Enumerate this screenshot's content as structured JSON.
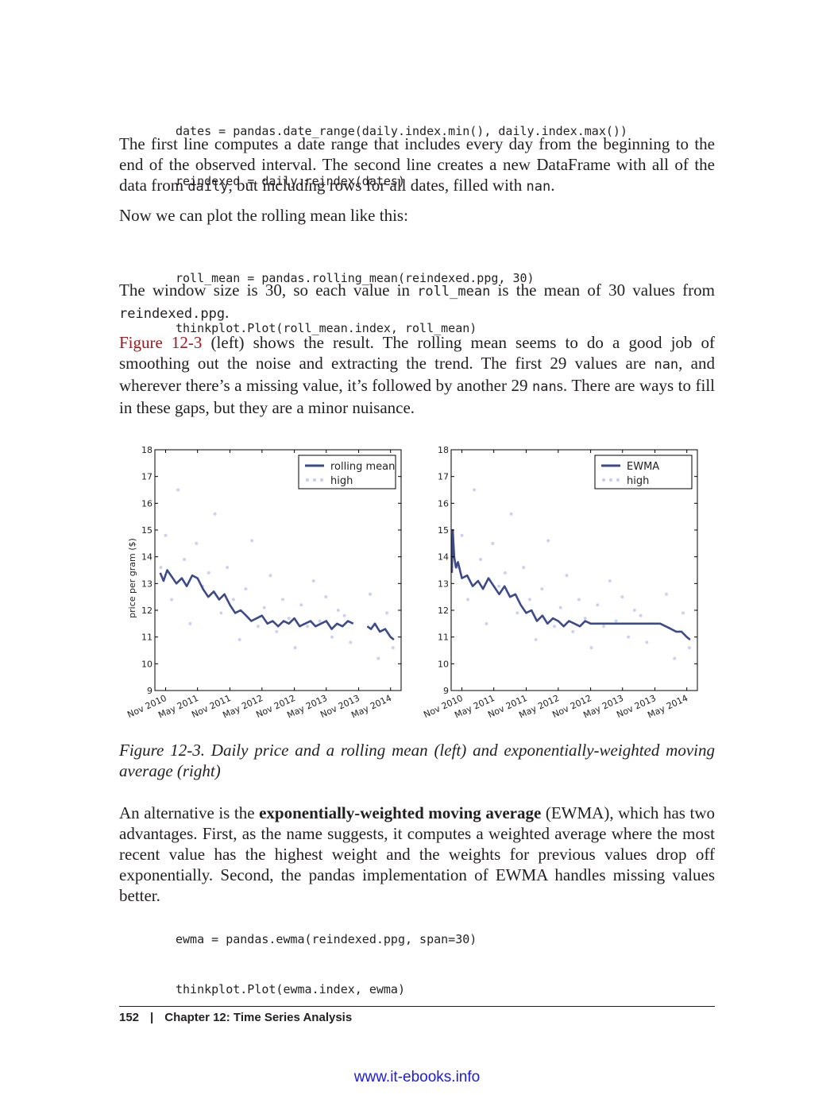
{
  "code_blocks": {
    "top": [
      "dates = pandas.date_range(daily.index.min(), daily.index.max())",
      "reindexed = daily.reindex(dates)"
    ],
    "middle": [
      "roll_mean = pandas.rolling_mean(reindexed.ppg, 30)",
      "thinkplot.Plot(roll_mean.index, roll_mean)"
    ],
    "bottom": [
      "ewma = pandas.ewma(reindexed.ppg, span=30)",
      "thinkplot.Plot(ewma.index, ewma)"
    ]
  },
  "paragraphs": {
    "p1": {
      "text_a": "The first line computes a date range that includes every day from the beginning to the end of the observed interval. The second line creates a new DataFrame with all of the data from ",
      "code_a": "daily",
      "text_b": ", but including rows for all dates, filled with ",
      "code_b": "nan",
      "text_c": "."
    },
    "p2": {
      "text": "Now we can plot the rolling mean like this:"
    },
    "p3": {
      "text_a": "The window size is 30, so each value in ",
      "code_a": "roll_mean",
      "text_b": " is the mean of 30 values from ",
      "code_b": "reindexed.ppg",
      "text_c": "."
    },
    "p4": {
      "link": "Figure 12-3",
      "text_a": " (left) shows the result. The rolling mean seems to do a good job of smoothing out the noise and extracting the trend. The first 29 values are ",
      "code_a": "nan",
      "text_b": ", and wherever there’s a missing value, it’s followed by another 29 ",
      "code_b": "nan",
      "text_c": "s. There are ways to fill in these gaps, but they are a minor nuisance."
    },
    "p5": {
      "text_a": "An alternative is the ",
      "bold": "exponentially-weighted moving average",
      "text_b": " (EWMA), which has two advantages. First, as the name suggests, it computes a weighted average where the most recent value has the highest weight and the weights for previous values drop off exponentially. Second, the pandas implementation of EWMA handles missing values better."
    }
  },
  "caption": "Figure 12-3. Daily price and a rolling mean (left) and exponentially-weighted moving average (right)",
  "footer": {
    "page_number": "152",
    "separator": "|",
    "chapter": "Chapter 12: Time Series Analysis"
  },
  "site": "www.it-ebooks.info",
  "colors": {
    "line": "#3c4a8c",
    "scatter": "#a9b3ee",
    "link": "#a0161c"
  },
  "chart_data": [
    {
      "type": "line",
      "title": "",
      "xlabel": "",
      "ylabel": "price per gram ($)",
      "ylim": [
        9,
        18
      ],
      "yticks": [
        "9",
        "10",
        "11",
        "12",
        "13",
        "14",
        "15",
        "16",
        "17",
        "18"
      ],
      "xticks": [
        "Nov 2010",
        "May 2011",
        "Nov 2011",
        "May 2012",
        "Nov 2012",
        "May 2013",
        "Nov 2013",
        "May 2014"
      ],
      "xlim": [
        "2010-09-01",
        "2014-06-30"
      ],
      "legend_position": "top-right",
      "grid": false,
      "series": [
        {
          "name": "rolling mean",
          "style": "line",
          "x": [
            "2010-10-01",
            "2010-10-20",
            "2010-11-10",
            "2010-12-01",
            "2011-01-01",
            "2011-02-01",
            "2011-03-01",
            "2011-04-01",
            "2011-05-01",
            "2011-06-01",
            "2011-07-01",
            "2011-08-01",
            "2011-09-01",
            "2011-10-01",
            "2011-11-01",
            "2011-12-01",
            "2012-01-01",
            "2012-02-01",
            "2012-03-01",
            "2012-04-01",
            "2012-05-01",
            "2012-06-01",
            "2012-07-01",
            "2012-08-01",
            "2012-09-01",
            "2012-10-01",
            "2012-11-01",
            "2012-12-01",
            "2013-01-01",
            "2013-02-01",
            "2013-03-01",
            "2013-04-01",
            "2013-05-01",
            "2013-06-01",
            "2013-07-01",
            "2013-08-01",
            "2013-09-01",
            "2013-10-01"
          ],
          "values": [
            13.4,
            13.1,
            13.5,
            13.3,
            13.0,
            13.2,
            12.9,
            13.3,
            13.2,
            12.8,
            12.5,
            12.7,
            12.4,
            12.6,
            12.2,
            11.9,
            12.0,
            11.8,
            11.6,
            11.7,
            11.8,
            11.5,
            11.6,
            11.4,
            11.6,
            11.5,
            11.7,
            11.4,
            11.5,
            11.6,
            11.4,
            11.5,
            11.6,
            11.3,
            11.5,
            11.4,
            11.6,
            11.5
          ]
        },
        {
          "name": "rolling mean",
          "style": "line",
          "x": [
            "2013-12-20",
            "2014-01-10",
            "2014-02-01",
            "2014-03-01",
            "2014-04-01",
            "2014-05-01",
            "2014-05-20"
          ],
          "values": [
            11.4,
            11.3,
            11.5,
            11.2,
            11.3,
            11.0,
            10.9
          ]
        },
        {
          "name": "high",
          "style": "scatter",
          "x": [
            "2010-10-05",
            "2010-11-01",
            "2010-12-05",
            "2011-01-10",
            "2011-02-15",
            "2011-03-20",
            "2011-04-25",
            "2011-05-30",
            "2011-07-04",
            "2011-08-08",
            "2011-09-12",
            "2011-10-17",
            "2011-11-21",
            "2011-12-26",
            "2012-01-30",
            "2012-03-05",
            "2012-04-09",
            "2012-05-14",
            "2012-06-18",
            "2012-07-23",
            "2012-08-27",
            "2012-10-01",
            "2012-11-05",
            "2012-12-10",
            "2013-01-14",
            "2013-02-18",
            "2013-03-25",
            "2013-04-29",
            "2013-06-03",
            "2013-07-08",
            "2013-08-12",
            "2013-09-16",
            "2014-01-05",
            "2014-02-20",
            "2014-04-10",
            "2014-05-15"
          ],
          "values": [
            13.6,
            14.8,
            12.4,
            16.5,
            13.9,
            11.5,
            14.5,
            12.9,
            13.4,
            15.6,
            11.9,
            13.6,
            12.4,
            10.9,
            12.8,
            14.6,
            11.4,
            12.1,
            13.3,
            11.2,
            12.4,
            11.7,
            10.6,
            12.2,
            11.4,
            13.1,
            11.6,
            12.5,
            11.0,
            12.0,
            11.8,
            10.8,
            12.6,
            10.2,
            11.9,
            10.6
          ]
        }
      ]
    },
    {
      "type": "line",
      "title": "",
      "xlabel": "",
      "ylabel": "",
      "ylim": [
        9,
        18
      ],
      "yticks": [
        "9",
        "10",
        "11",
        "12",
        "13",
        "14",
        "15",
        "16",
        "17",
        "18"
      ],
      "xticks": [
        "Nov 2010",
        "May 2011",
        "Nov 2011",
        "May 2012",
        "Nov 2012",
        "May 2013",
        "Nov 2013",
        "May 2014"
      ],
      "xlim": [
        "2010-09-01",
        "2014-06-30"
      ],
      "legend_position": "top-right",
      "grid": false,
      "series": [
        {
          "name": "EWMA",
          "style": "line",
          "x": [
            "2010-09-05",
            "2010-09-10",
            "2010-09-18",
            "2010-09-28",
            "2010-10-10",
            "2010-11-01",
            "2010-12-01",
            "2011-01-01",
            "2011-02-01",
            "2011-03-01",
            "2011-04-01",
            "2011-05-01",
            "2011-06-01",
            "2011-07-01",
            "2011-08-01",
            "2011-09-01",
            "2011-10-01",
            "2011-11-01",
            "2011-12-01",
            "2012-01-01",
            "2012-02-01",
            "2012-03-01",
            "2012-04-01",
            "2012-05-01",
            "2012-06-01",
            "2012-07-01",
            "2012-08-01",
            "2012-09-01",
            "2012-10-01",
            "2012-11-01",
            "2012-12-01",
            "2013-01-01",
            "2013-02-01",
            "2013-03-01",
            "2013-04-01",
            "2013-05-01",
            "2013-06-01",
            "2013-07-01",
            "2013-08-01",
            "2013-09-01",
            "2013-10-01",
            "2013-11-01",
            "2013-12-01",
            "2014-01-01",
            "2014-02-01",
            "2014-03-01",
            "2014-04-01",
            "2014-05-01",
            "2014-05-20"
          ],
          "values": [
            13.4,
            15.0,
            14.0,
            13.6,
            13.8,
            13.2,
            13.3,
            12.9,
            13.1,
            12.8,
            13.2,
            12.9,
            12.6,
            12.9,
            12.5,
            12.6,
            12.2,
            11.9,
            12.0,
            11.6,
            11.8,
            11.5,
            11.7,
            11.6,
            11.4,
            11.6,
            11.5,
            11.4,
            11.6,
            11.5,
            11.5,
            11.5,
            11.5,
            11.5,
            11.5,
            11.5,
            11.5,
            11.5,
            11.5,
            11.5,
            11.5,
            11.5,
            11.5,
            11.4,
            11.3,
            11.2,
            11.2,
            11.0,
            10.9
          ]
        },
        {
          "name": "high",
          "style": "scatter",
          "x": [
            "2010-10-05",
            "2010-11-01",
            "2010-12-05",
            "2011-01-10",
            "2011-02-15",
            "2011-03-20",
            "2011-04-25",
            "2011-05-30",
            "2011-07-04",
            "2011-08-08",
            "2011-09-12",
            "2011-10-17",
            "2011-11-21",
            "2011-12-26",
            "2012-01-30",
            "2012-03-05",
            "2012-04-09",
            "2012-05-14",
            "2012-06-18",
            "2012-07-23",
            "2012-08-27",
            "2012-10-01",
            "2012-11-05",
            "2012-12-10",
            "2013-01-14",
            "2013-02-18",
            "2013-03-25",
            "2013-04-29",
            "2013-06-03",
            "2013-07-08",
            "2013-08-12",
            "2013-09-16",
            "2014-01-05",
            "2014-02-20",
            "2014-04-10",
            "2014-05-15"
          ],
          "values": [
            13.6,
            14.8,
            12.4,
            16.5,
            13.9,
            11.5,
            14.5,
            12.9,
            13.4,
            15.6,
            11.9,
            13.6,
            12.4,
            10.9,
            12.8,
            14.6,
            11.4,
            12.1,
            13.3,
            11.2,
            12.4,
            11.7,
            10.6,
            12.2,
            11.4,
            13.1,
            11.6,
            12.5,
            11.0,
            12.0,
            11.8,
            10.8,
            12.6,
            10.2,
            11.9,
            10.6
          ]
        }
      ]
    }
  ]
}
